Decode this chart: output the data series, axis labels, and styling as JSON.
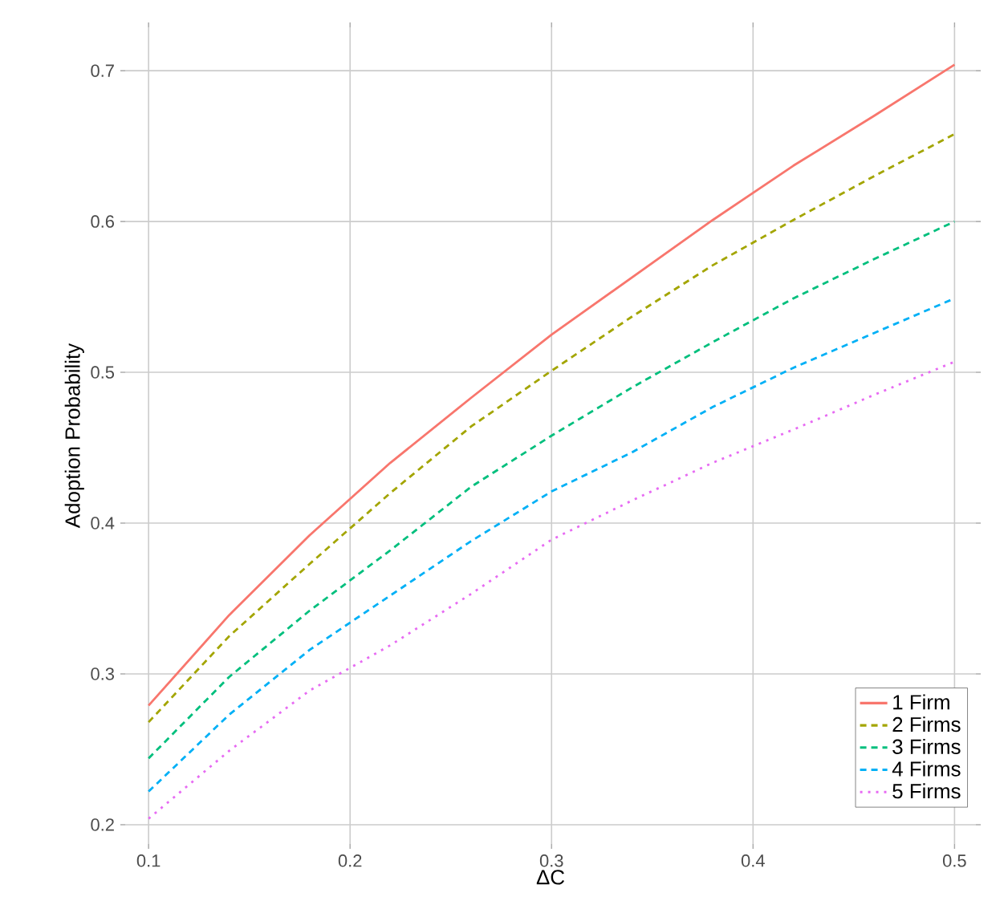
{
  "chart_data": {
    "type": "line",
    "xlabel": "ΔC",
    "ylabel": "Adoption Probability",
    "x": [
      0.1,
      0.14,
      0.18,
      0.22,
      0.26,
      0.3,
      0.34,
      0.38,
      0.42,
      0.46,
      0.5
    ],
    "series": [
      {
        "name": "1 Firm",
        "color": "#f8766d",
        "line_style": "solid",
        "values": [
          0.279,
          0.339,
          0.392,
          0.44,
          0.483,
          0.525,
          0.563,
          0.601,
          0.637,
          0.67,
          0.704
        ]
      },
      {
        "name": "2 Firms",
        "color": "#a3a500",
        "line_style": "dashed",
        "values": [
          0.268,
          0.325,
          0.373,
          0.42,
          0.464,
          0.501,
          0.537,
          0.571,
          0.601,
          0.63,
          0.658
        ]
      },
      {
        "name": "3 Firms",
        "color": "#00bf7d",
        "line_style": "dashed",
        "values": [
          0.244,
          0.298,
          0.342,
          0.382,
          0.424,
          0.458,
          0.49,
          0.52,
          0.549,
          0.575,
          0.6
        ]
      },
      {
        "name": "4 Firms",
        "color": "#00b0f6",
        "line_style": "dashed",
        "values": [
          0.222,
          0.273,
          0.316,
          0.352,
          0.388,
          0.421,
          0.447,
          0.477,
          0.503,
          0.526,
          0.549
        ]
      },
      {
        "name": "5 Firms",
        "color": "#e76bf3",
        "line_style": "dotted",
        "values": [
          0.204,
          0.249,
          0.289,
          0.319,
          0.353,
          0.389,
          0.415,
          0.44,
          0.462,
          0.485,
          0.507
        ]
      }
    ],
    "xlim": [
      0.086,
      0.513
    ],
    "ylim": [
      0.184,
      0.732
    ],
    "xticks": [
      0.1,
      0.2,
      0.3,
      0.4,
      0.5
    ],
    "yticks": [
      0.2,
      0.3,
      0.4,
      0.5,
      0.6,
      0.7
    ],
    "grid": true,
    "legend": "bottom right",
    "marker": "none"
  }
}
